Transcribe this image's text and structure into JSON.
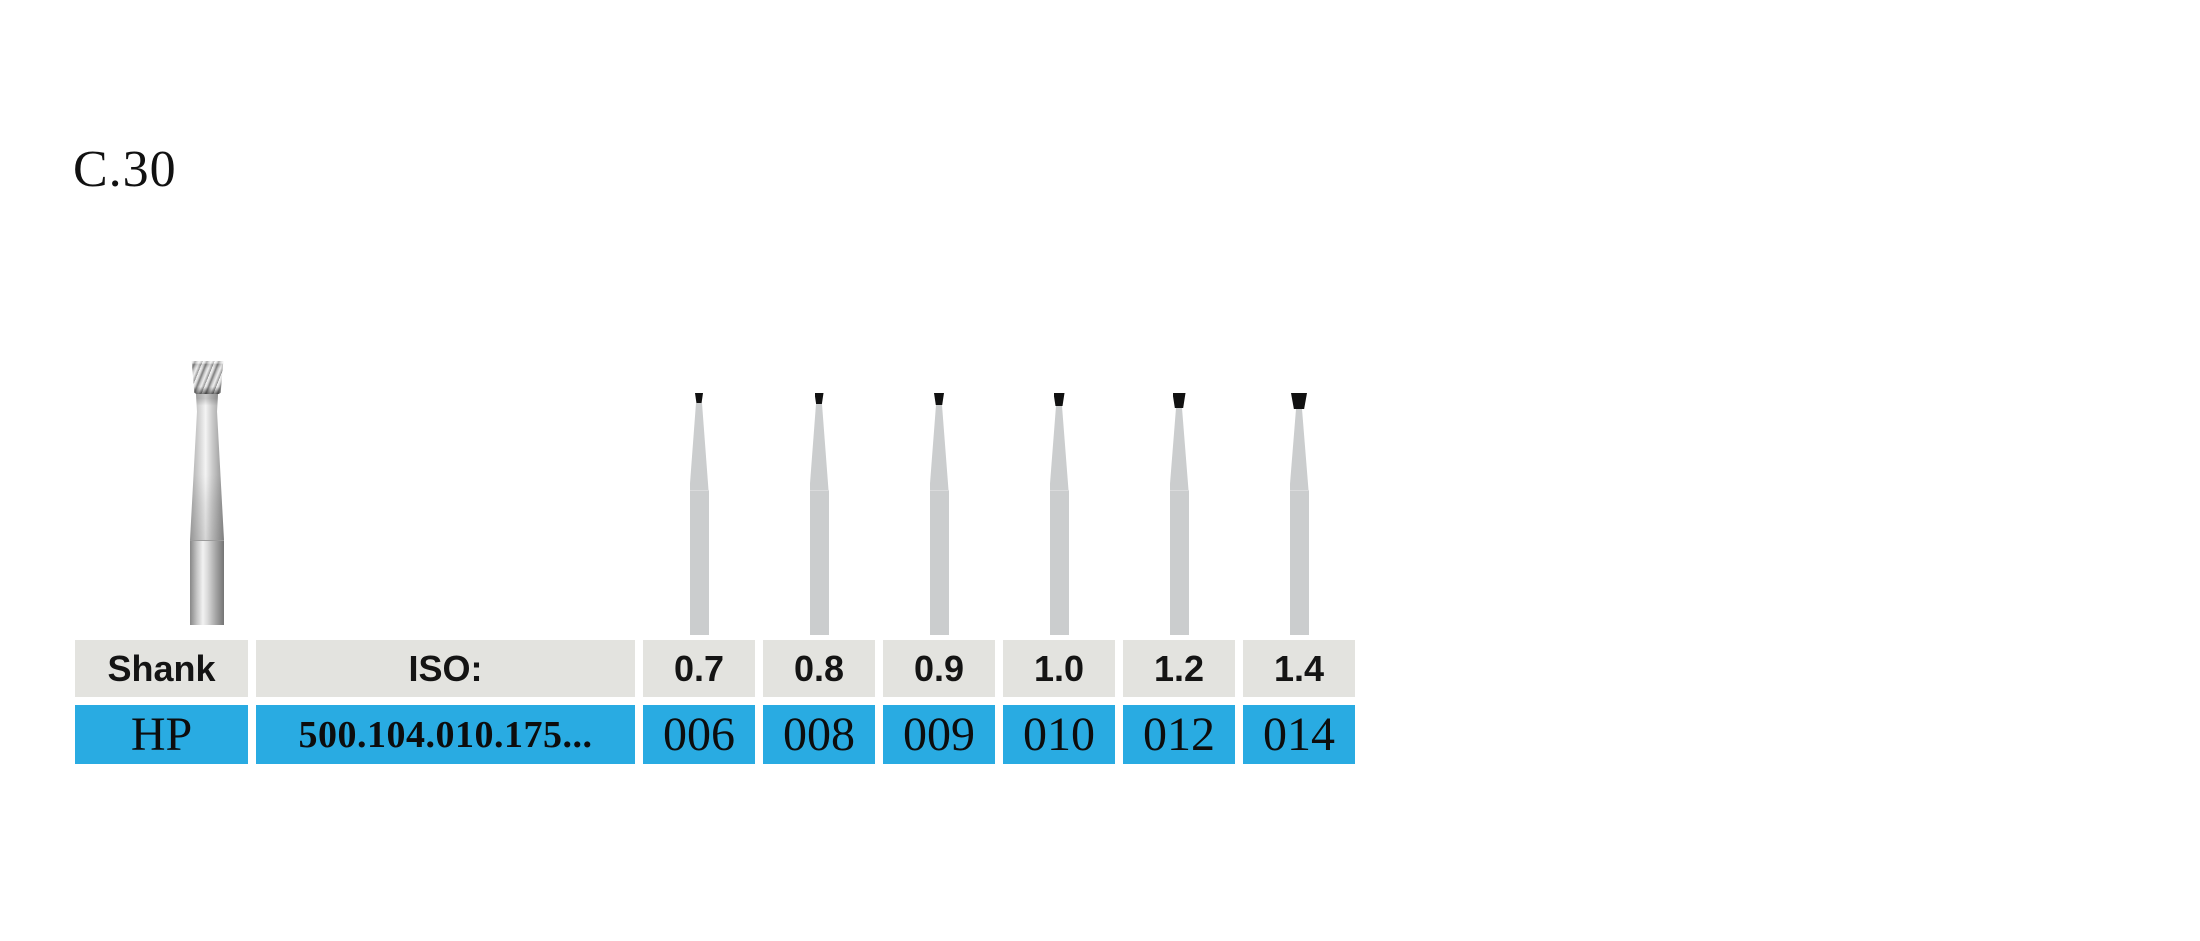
{
  "page": {
    "code": "C.30"
  },
  "table": {
    "header": {
      "shank_label": "Shank",
      "iso_label": "ISO:",
      "sizes": [
        "0.7",
        "0.8",
        "0.9",
        "1.0",
        "1.2",
        "1.4"
      ]
    },
    "row": {
      "shank": "HP",
      "iso": "500.104.010.175...",
      "codes": [
        "006",
        "008",
        "009",
        "010",
        "012",
        "014"
      ]
    }
  },
  "colors": {
    "row_blue": "#29abe2",
    "header_gray": "#e3e3df",
    "silhouette_gray": "#cbcdce",
    "bur_head_black": "#111111",
    "text_dark": "#111111",
    "page_background": "#ffffff"
  }
}
